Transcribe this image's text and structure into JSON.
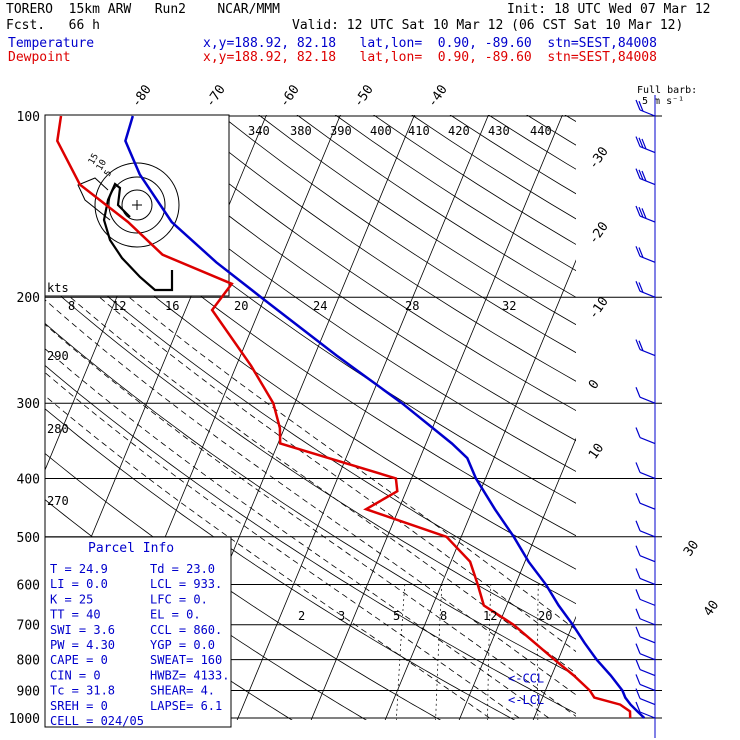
{
  "header": {
    "model": "TORERO  15km ARW   Run2    NCAR/MMM",
    "init": "Init: 18 UTC Wed 07 Mar 12",
    "fcst": "Fcst.   66 h",
    "valid": "Valid: 12 UTC Sat 10 Mar 12 (06 CST Sat 10 Mar 12)",
    "temp_label": "Temperature",
    "temp_loc": "x,y=188.92, 82.18   lat,lon=  0.90, -89.60  stn=SEST,84008",
    "dew_label": "Dewpoint",
    "dew_loc": "x,y=188.92, 82.18   lat,lon=  0.90, -89.60  stn=SEST,84008"
  },
  "barb_key": {
    "line1": "Full barb:",
    "line2": "5 m s⁻¹"
  },
  "hodograph": {
    "unit": "kts",
    "rings": [
      "5",
      "10",
      "15"
    ]
  },
  "parcel_info": {
    "title": "Parcel Info",
    "rows": [
      [
        "T  =    24.9",
        "Td =   23.0"
      ],
      [
        "LI =     0.0",
        "LCL =  933."
      ],
      [
        "K  =      25",
        "LFC =    0."
      ],
      [
        "TT =      40",
        "EL  =    0."
      ],
      [
        "SWI =    3.6",
        "CCL =  860."
      ],
      [
        "PW =    4.30",
        "YGP =   0.0"
      ],
      [
        "CAPE =     0",
        "SWEAT=  160"
      ],
      [
        "CIN =      0",
        "HWBZ= 4133."
      ],
      [
        "Tc =    31.8",
        "SHEAR=   4."
      ],
      [
        "SREH =     0",
        "LAPSE=  6.1"
      ],
      [
        "CELL = 024/05",
        ""
      ]
    ]
  },
  "chart_data": {
    "type": "line",
    "title": "",
    "y_axis": "Pressure (hPa), logarithmic",
    "pressure_levels": [
      100,
      200,
      300,
      400,
      500,
      600,
      700,
      800,
      900,
      1000
    ],
    "temperature_isotherms": [
      -90,
      -80,
      -70,
      -60,
      -50,
      -40,
      -30,
      -20,
      -10,
      0,
      10,
      20,
      30,
      40
    ],
    "temperature_labels": [
      "-80",
      "-70",
      "-60",
      "-50",
      "-40",
      "-30",
      "-20",
      "-10",
      "0",
      "10",
      "30",
      "40"
    ],
    "theta_labels": [
      "340",
      "380",
      "390",
      "400",
      "410",
      "420",
      "430",
      "440"
    ],
    "theta_labels_lower": [
      "290",
      "280",
      "270"
    ],
    "mixing_ratio_labels_top": [
      "8",
      "12",
      "16",
      "20",
      "24",
      "28",
      "32"
    ],
    "mixing_ratio_labels_low": [
      "2",
      "3",
      "5",
      "8",
      "12",
      "20"
    ],
    "level_annotations": [
      {
        "label": "CCL",
        "p": 860
      },
      {
        "label": "LCL",
        "p": 933
      }
    ],
    "series": [
      {
        "name": "Temperature",
        "color": "#0000cc",
        "points": [
          [
            1000,
            24.9
          ],
          [
            975,
            23.6
          ],
          [
            950,
            22.3
          ],
          [
            925,
            21.2
          ],
          [
            900,
            20.4
          ],
          [
            850,
            18.0
          ],
          [
            800,
            15.2
          ],
          [
            750,
            12.6
          ],
          [
            700,
            10.0
          ],
          [
            650,
            7.0
          ],
          [
            600,
            4.1
          ],
          [
            550,
            0.5
          ],
          [
            500,
            -2.9
          ],
          [
            450,
            -7.0
          ],
          [
            400,
            -11.3
          ],
          [
            370,
            -13.6
          ],
          [
            350,
            -16.5
          ],
          [
            300,
            -25.5
          ],
          [
            250,
            -37.0
          ],
          [
            200,
            -50.5
          ],
          [
            175,
            -58.5
          ],
          [
            150,
            -66.8
          ],
          [
            125,
            -73.8
          ],
          [
            110,
            -77.6
          ],
          [
            100,
            -78.0
          ]
        ]
      },
      {
        "name": "Dewpoint",
        "color": "#dd0000",
        "points": [
          [
            1000,
            23.0
          ],
          [
            975,
            22.6
          ],
          [
            950,
            20.9
          ],
          [
            925,
            17.0
          ],
          [
            900,
            16.0
          ],
          [
            850,
            13.0
          ],
          [
            800,
            9.5
          ],
          [
            700,
            2.0
          ],
          [
            650,
            -3.1
          ],
          [
            600,
            -5.1
          ],
          [
            550,
            -7.4
          ],
          [
            500,
            -12.0
          ],
          [
            450,
            -24.4
          ],
          [
            420,
            -21.2
          ],
          [
            400,
            -22.1
          ],
          [
            350,
            -39.7
          ],
          [
            330,
            -40.6
          ],
          [
            300,
            -42.9
          ],
          [
            260,
            -48.0
          ],
          [
            210,
            -56.4
          ],
          [
            190,
            -55.2
          ],
          [
            170,
            -66.2
          ],
          [
            150,
            -72.7
          ],
          [
            130,
            -81.3
          ],
          [
            110,
            -86.8
          ],
          [
            100,
            -87.7
          ]
        ]
      }
    ],
    "hodograph_path": [
      [
        0,
        0
      ],
      [
        -1,
        -2
      ],
      [
        -3,
        -4
      ],
      [
        -6,
        -6
      ],
      [
        -8,
        -5
      ],
      [
        -11,
        -3
      ],
      [
        -13,
        0
      ],
      [
        -12,
        3
      ],
      [
        -10,
        6
      ],
      [
        -7,
        9
      ],
      [
        -4,
        12
      ],
      [
        -2,
        13
      ]
    ],
    "wind_barbs": [
      {
        "p": 1000,
        "kts": 5
      },
      {
        "p": 950,
        "kts": 5
      },
      {
        "p": 900,
        "kts": 5
      },
      {
        "p": 850,
        "kts": 5
      },
      {
        "p": 800,
        "kts": 5
      },
      {
        "p": 750,
        "kts": 5
      },
      {
        "p": 700,
        "kts": 5
      },
      {
        "p": 650,
        "kts": 5
      },
      {
        "p": 600,
        "kts": 5
      },
      {
        "p": 550,
        "kts": 5
      },
      {
        "p": 500,
        "kts": 5
      },
      {
        "p": 450,
        "kts": 5
      },
      {
        "p": 400,
        "kts": 5
      },
      {
        "p": 350,
        "kts": 5
      },
      {
        "p": 300,
        "kts": 5
      },
      {
        "p": 250,
        "kts": 10
      },
      {
        "p": 200,
        "kts": 10
      },
      {
        "p": 175,
        "kts": 10
      },
      {
        "p": 150,
        "kts": 15
      },
      {
        "p": 130,
        "kts": 20
      },
      {
        "p": 115,
        "kts": 20
      },
      {
        "p": 100,
        "kts": 10
      }
    ],
    "grid": true
  }
}
